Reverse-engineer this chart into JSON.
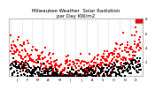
{
  "title": "Milwaukee Weather  Solar Radiation\nper Day KW/m2",
  "title_fontsize": 4.0,
  "background_color": "#ffffff",
  "plot_bg_color": "#ffffff",
  "grid_color": "#bbbbbb",
  "ylim": [
    0,
    8
  ],
  "ytick_values": [
    2,
    4,
    6,
    8
  ],
  "ytick_labels": [
    "2",
    "4",
    "6",
    "8"
  ],
  "marker_size_red": 2.5,
  "marker_size_black": 2.0,
  "seed": 7,
  "n_years": 1,
  "legend_rect_color": "#ff0000"
}
